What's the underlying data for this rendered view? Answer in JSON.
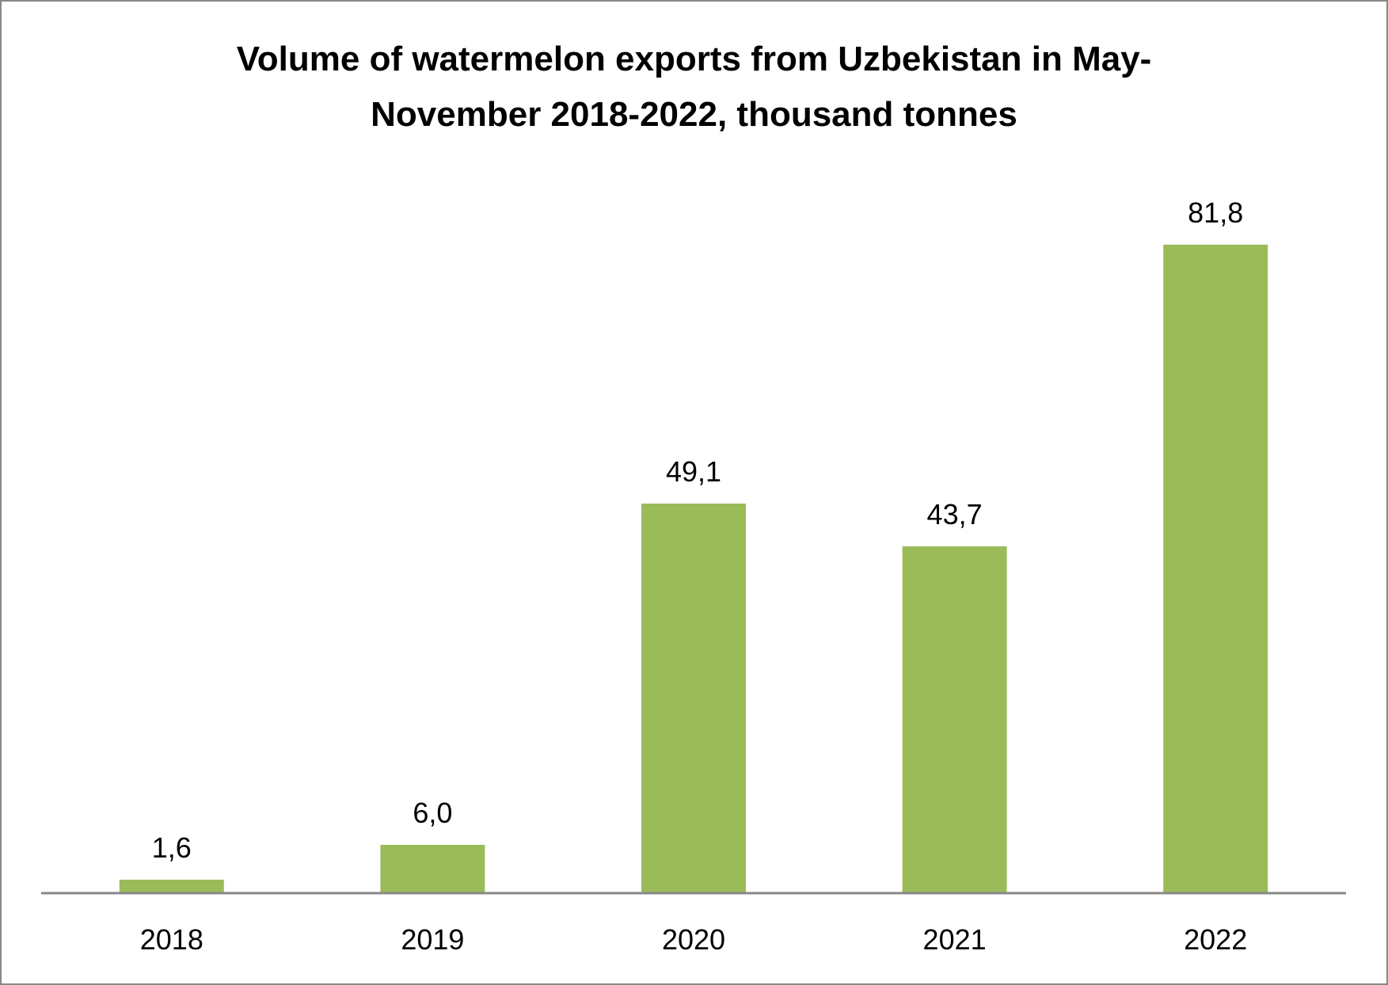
{
  "chart_data": {
    "type": "bar",
    "title_line1": "Volume of watermelon exports from Uzbekistan in May-",
    "title_line2": "November 2018-2022, thousand tonnes",
    "categories": [
      "2018",
      "2019",
      "2020",
      "2021",
      "2022"
    ],
    "values": [
      1.6,
      6.0,
      49.1,
      43.7,
      81.8
    ],
    "data_labels": [
      "1,6",
      "6,0",
      "49,1",
      "43,7",
      "81,8"
    ],
    "xlabel": "",
    "ylabel": "",
    "ylim": [
      0,
      100
    ],
    "grid": false,
    "legend": "none",
    "bar_color": "#9BBB59",
    "axis_color": "#888888"
  }
}
